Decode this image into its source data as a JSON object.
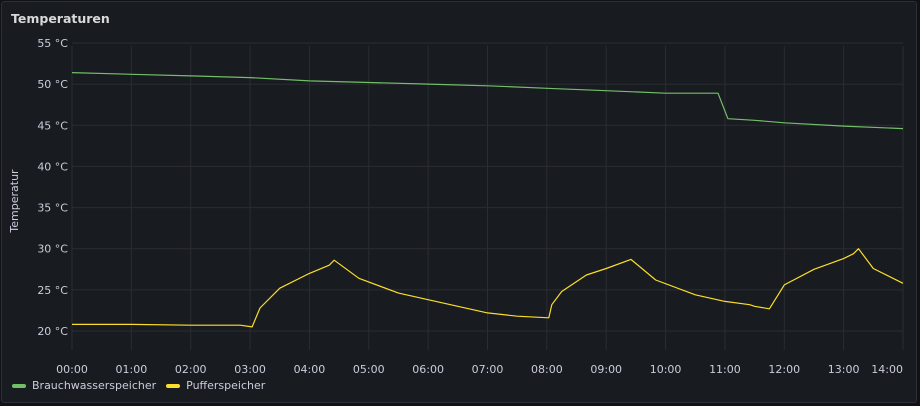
{
  "panel": {
    "title": "Temperaturen"
  },
  "colors": {
    "Brauchwasserspeicher": "#73bf69",
    "Pufferspeicher": "#fade2a"
  },
  "chart_data": {
    "type": "line",
    "ylabel": "Temperatur",
    "yunit": "°C",
    "ylim": [
      18.5,
      57
    ],
    "yticks": [
      "55 °C",
      "50 °C",
      "45 °C",
      "40 °C",
      "35 °C",
      "30 °C",
      "25 °C",
      "20 °C"
    ],
    "ytick_values": [
      55,
      50,
      45,
      40,
      35,
      30,
      25,
      20
    ],
    "xlim": [
      "00:00",
      "14:00"
    ],
    "xticks": [
      "00:00",
      "01:00",
      "02:00",
      "03:00",
      "04:00",
      "05:00",
      "06:00",
      "07:00",
      "08:00",
      "09:00",
      "10:00",
      "11:00",
      "12:00",
      "13:00",
      "14:00"
    ],
    "grid": true,
    "legend_position": "bottom-left",
    "series": [
      {
        "name": "Brauchwasserspeicher",
        "x": [
          "00:00",
          "01:00",
          "02:00",
          "03:00",
          "04:00",
          "05:00",
          "06:00",
          "07:00",
          "08:00",
          "09:00",
          "10:00",
          "10:53",
          "11:03",
          "11:30",
          "12:00",
          "13:00",
          "14:00"
        ],
        "y": [
          51.4,
          51.2,
          51.0,
          50.8,
          50.4,
          50.2,
          50.0,
          49.8,
          49.5,
          49.2,
          48.9,
          48.9,
          45.8,
          45.6,
          45.3,
          44.9,
          44.6
        ]
      },
      {
        "name": "Pufferspeicher",
        "x": [
          "00:00",
          "01:00",
          "02:00",
          "02:50",
          "03:02",
          "03:10",
          "03:30",
          "04:00",
          "04:20",
          "04:25",
          "04:50",
          "05:30",
          "06:00",
          "07:00",
          "07:30",
          "08:02",
          "08:05",
          "08:15",
          "08:40",
          "09:00",
          "09:25",
          "09:30",
          "09:50",
          "10:30",
          "11:00",
          "11:25",
          "11:30",
          "11:45",
          "12:00",
          "12:30",
          "13:00",
          "13:10",
          "13:15",
          "13:30",
          "14:00"
        ],
        "y": [
          20.8,
          20.8,
          20.7,
          20.7,
          20.5,
          22.8,
          25.2,
          27.0,
          28.0,
          28.6,
          26.4,
          24.6,
          23.8,
          22.2,
          21.8,
          21.6,
          23.2,
          24.8,
          26.8,
          27.6,
          28.7,
          28.2,
          26.2,
          24.4,
          23.6,
          23.2,
          23.0,
          22.7,
          25.6,
          27.5,
          28.8,
          29.4,
          30.0,
          27.6,
          25.8
        ]
      }
    ]
  }
}
